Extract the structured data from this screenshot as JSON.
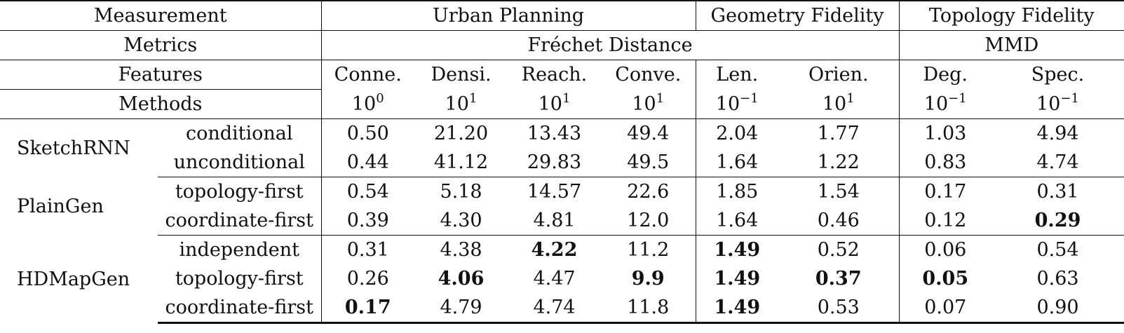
{
  "header": {
    "measurement_label": "Measurement",
    "groups": [
      {
        "label": "Urban Planning"
      },
      {
        "label": "Geometry Fidelity"
      },
      {
        "label": "Topology Fidelity"
      }
    ],
    "metrics_label": "Metrics",
    "metric_groups": [
      {
        "label": "Fréchet Distance"
      },
      {
        "label": "MMD"
      }
    ],
    "features_label": "Features",
    "features": [
      "Conne.",
      "Densi.",
      "Reach.",
      "Conve.",
      "Len.",
      "Orien.",
      "Deg.",
      "Spec."
    ],
    "methods_label": "Methods",
    "units": [
      {
        "base": "10",
        "exp": "0"
      },
      {
        "base": "10",
        "exp": "1"
      },
      {
        "base": "10",
        "exp": "1"
      },
      {
        "base": "10",
        "exp": "1"
      },
      {
        "base": "10",
        "exp": "−1"
      },
      {
        "base": "10",
        "exp": "1"
      },
      {
        "base": "10",
        "exp": "−1"
      },
      {
        "base": "10",
        "exp": "−1"
      }
    ]
  },
  "rows": [
    {
      "method": "SketchRNN",
      "variant": "conditional",
      "values": [
        "0.50",
        "21.20",
        "13.43",
        "49.4",
        "2.04",
        "1.77",
        "1.03",
        "4.94"
      ],
      "bold": []
    },
    {
      "method": "",
      "variant": "unconditional",
      "values": [
        "0.44",
        "41.12",
        "29.83",
        "49.5",
        "1.64",
        "1.22",
        "0.83",
        "4.74"
      ],
      "bold": []
    },
    {
      "method": "PlainGen",
      "variant": "topology-first",
      "values": [
        "0.54",
        "5.18",
        "14.57",
        "22.6",
        "1.85",
        "1.54",
        "0.17",
        "0.31"
      ],
      "bold": []
    },
    {
      "method": "",
      "variant": "coordinate-first",
      "values": [
        "0.39",
        "4.30",
        "4.81",
        "12.0",
        "1.64",
        "0.46",
        "0.12",
        "0.29"
      ],
      "bold": [
        7
      ]
    },
    {
      "method": "",
      "variant": "independent",
      "values": [
        "0.31",
        "4.38",
        "4.22",
        "11.2",
        "1.49",
        "0.52",
        "0.06",
        "0.54"
      ],
      "bold": [
        2,
        4
      ]
    },
    {
      "method": "HDMapGen",
      "variant": "topology-first",
      "values": [
        "0.26",
        "4.06",
        "4.47",
        "9.9",
        "1.49",
        "0.37",
        "0.05",
        "0.63"
      ],
      "bold": [
        1,
        3,
        4,
        5,
        6
      ]
    },
    {
      "method": "",
      "variant": "coordinate-first",
      "values": [
        "0.17",
        "4.79",
        "4.74",
        "11.8",
        "1.49",
        "0.53",
        "0.07",
        "0.90"
      ],
      "bold": [
        0,
        4
      ]
    }
  ]
}
